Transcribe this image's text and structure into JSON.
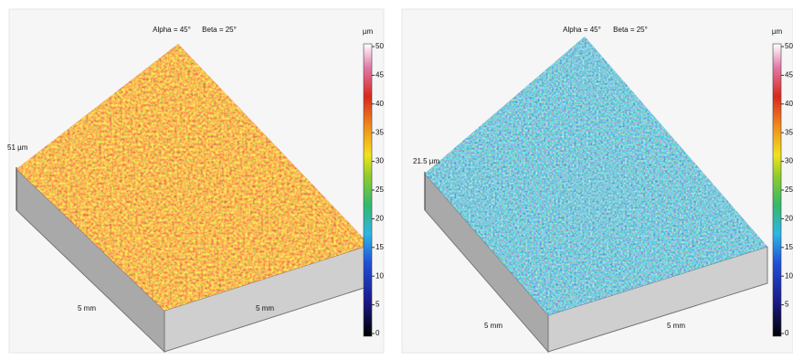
{
  "panels": [
    {
      "alpha": "Alpha = 45°",
      "beta": "Beta = 25°",
      "unit": "µm",
      "height": "51 µm",
      "x_label": "5 mm",
      "y_label": "5 mm",
      "colorbar_ticks": [
        0,
        5,
        10,
        15,
        20,
        25,
        30,
        35,
        40,
        45,
        50
      ]
    },
    {
      "alpha": "Alpha = 45°",
      "beta": "Beta = 25°",
      "unit": "µm",
      "height": "21.5 µm",
      "x_label": "5 mm",
      "y_label": "5 mm",
      "colorbar_ticks": [
        0,
        5,
        10,
        15,
        20,
        25,
        30,
        35,
        40,
        45,
        50
      ]
    }
  ]
}
